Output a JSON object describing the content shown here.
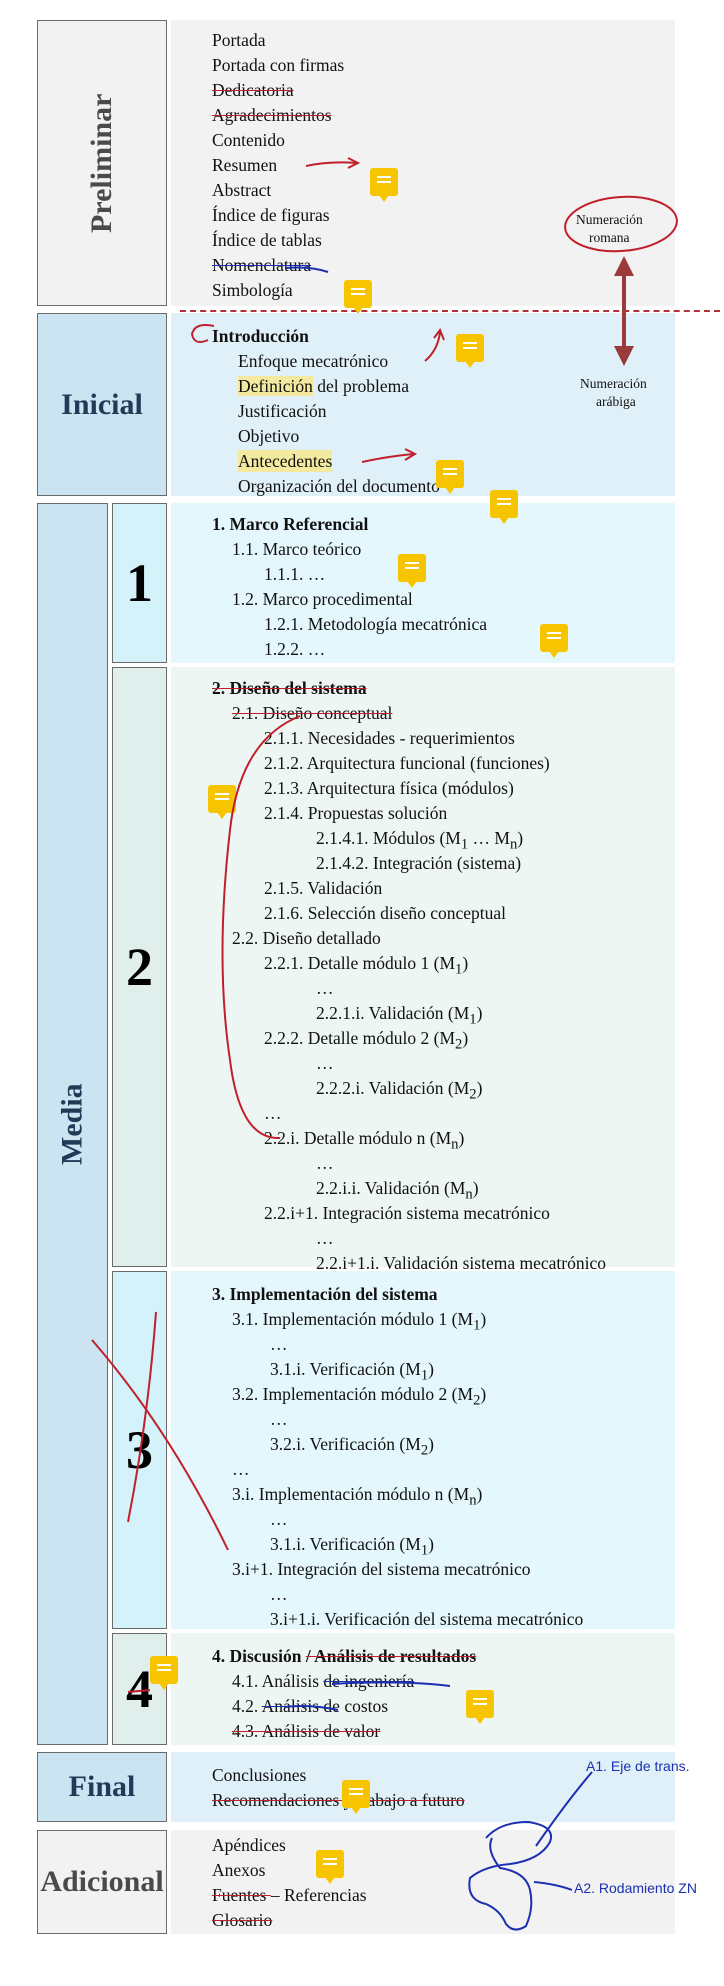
{
  "sections": {
    "preliminar": "Preliminar",
    "inicial": "Inicial",
    "media": "Media",
    "final": "Final",
    "adicional": "Adicional",
    "num1": "1",
    "num2": "2",
    "num3": "3",
    "num4": "4"
  },
  "preliminar_items": [
    "Portada",
    "Portada con firmas",
    "Dedicatoria",
    "Agradecimientos",
    "Contenido",
    "Resumen",
    "Abstract",
    "Índice de figuras",
    "Índice de tablas",
    "Nomenclatura",
    "Simbología"
  ],
  "inicial_items": {
    "intro": "Introducción",
    "enfoque": "Enfoque mecatrónico",
    "definicion": "Definición",
    "definicion_rest": " del problema",
    "justificacion": "Justificación",
    "objetivo": "Objetivo",
    "antecedentes": "Antecedentes",
    "organizacion": "Organización del documento"
  },
  "annotations": {
    "numeracion_romana_1": "Numeración",
    "numeracion_romana_2": "romana",
    "numeracion_arabiga_1": "Numeración",
    "numeracion_arabiga_2": "arábiga",
    "a1": "A1. Eje de trans.",
    "a2": "A2. Rodamiento ZN"
  },
  "ch1": [
    "1. Marco Referencial",
    "1.1. Marco teórico",
    "1.1.1. …",
    "1.2. Marco procedimental",
    "1.2.1. Metodología mecatrónica",
    "1.2.2. …"
  ],
  "ch2": {
    "title": "2. Diseño del sistema",
    "s21": "2.1. Diseño conceptual",
    "s211": "2.1.1. Necesidades - requerimientos",
    "s212": "2.1.2. Arquitectura funcional (funciones)",
    "s213": "2.1.3. Arquitectura física (módulos)",
    "s214": "2.1.4. Propuestas solución",
    "s2141": "2.1.4.1. Módulos (M",
    "s2142": "2.1.4.2. Integración (sistema)",
    "s215": "2.1.5. Validación",
    "s216": "2.1.6. Selección diseño conceptual",
    "s22": "2.2. Diseño detallado",
    "s221": "2.2.1. Detalle módulo 1 (M",
    "e1": "…",
    "s221i": "2.2.1.i. Validación (M",
    "s222": "2.2.2. Detalle módulo 2 (M",
    "e2": "…",
    "s222i": "2.2.2.i. Validación (M",
    "e3": "…",
    "s22i": "2.2.i. Detalle módulo n (M",
    "e4": "…",
    "s22ii": "2.2.i.i. Validación (M",
    "s22i1": "2.2.i+1. Integración sistema mecatrónico",
    "e5": "…",
    "s22i1i": "2.2.i+1.i. Validación sistema mecatrónico"
  },
  "ch3": {
    "title": "3. Implementación del sistema",
    "s31": "3.1. Implementación módulo 1 (M",
    "e1": "…",
    "s31i": "3.1.i. Verificación (M",
    "s32": "3.2. Implementación módulo 2 (M",
    "e2": "…",
    "s32i": "3.2.i. Verificación (M",
    "e3": "…",
    "s3i": "3.i. Implementación módulo n (M",
    "e4": "…",
    "s3ii": "3.1.i. Verificación  (M",
    "s3i1": "3.i+1. Integración del sistema mecatrónico",
    "e5": "…",
    "s3i1i": "3.i+1.i. Verificación del sistema mecatrónico"
  },
  "ch4": {
    "title_a": "4. Discusión ",
    "title_b": "/ Análisis de resultados",
    "s41": "4.1. Análisis ",
    "s41b": "de ingeniería",
    "s42a": "4.2. ",
    "s42b": "Análisis",
    "s42c": " de costos",
    "s43": "4.3. Análisis de valor"
  },
  "final_items": {
    "conclusiones": "Conclusiones",
    "recomendaciones": "Recomendaciones y trabajo a futuro"
  },
  "adicional_items": {
    "apendices": "Apéndices",
    "anexos": "Anexos",
    "fuentes": "Fuentes ",
    "referencias": "– Referencias",
    "glosario": "Glosario"
  },
  "subscripts": {
    "one": "1",
    "two": "2",
    "n": "n",
    "dots": " … M"
  },
  "colors": {
    "border": "#6b6b6b",
    "label_text": "#1f3b57",
    "note": "#f6c500",
    "ink_red": "#c0202b",
    "ink_blue": "#1b2fb0"
  }
}
